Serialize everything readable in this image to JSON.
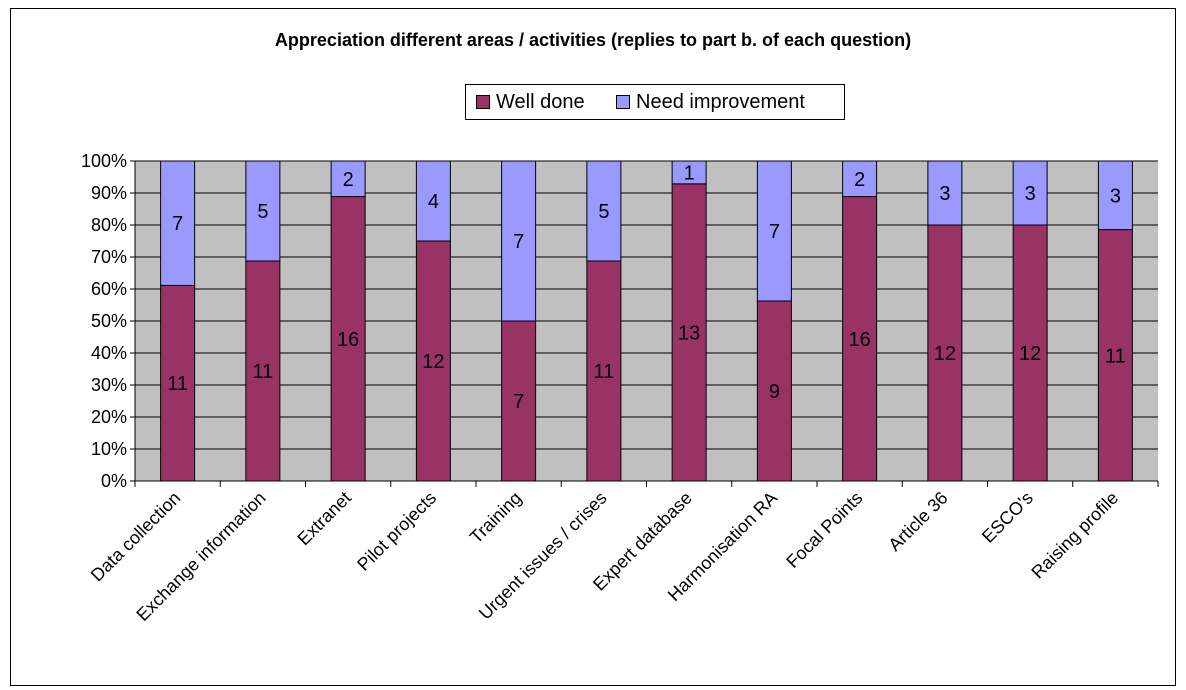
{
  "colors": {
    "plot_bg": "#c0c0c0",
    "well_done": "#993366",
    "need_improvement": "#9999ff"
  },
  "chart_data": {
    "type": "bar",
    "stacked": "percent",
    "title": "Appreciation different areas / activities (replies to part b. of each question)",
    "categories": [
      "Data collection",
      "Exchange information",
      "Extranet",
      "Pilot projects",
      "Training",
      "Urgent issues / crises",
      "Expert database",
      "Harmonisation RA",
      "Focal Points",
      "Article 36",
      "ESCO's",
      "Raising profile"
    ],
    "series": [
      {
        "name": "Well done",
        "values": [
          11,
          11,
          16,
          12,
          7,
          11,
          13,
          9,
          16,
          12,
          12,
          11
        ]
      },
      {
        "name": "Need improvement",
        "values": [
          7,
          5,
          2,
          4,
          7,
          5,
          1,
          7,
          2,
          3,
          3,
          3
        ]
      }
    ],
    "ylim": [
      0,
      100
    ],
    "yticks": [
      "0%",
      "10%",
      "20%",
      "30%",
      "40%",
      "50%",
      "60%",
      "70%",
      "80%",
      "90%",
      "100%"
    ],
    "legend_position": "top-center",
    "grid": true
  }
}
